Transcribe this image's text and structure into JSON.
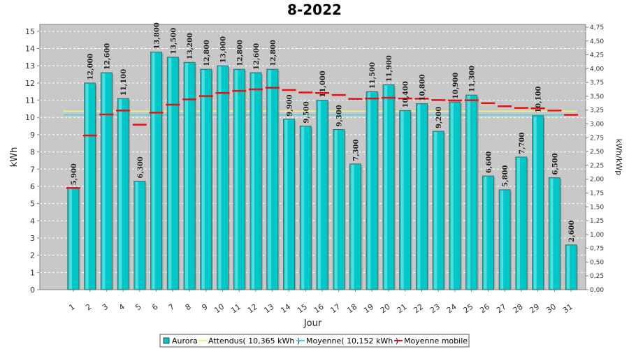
{
  "chart_data": {
    "type": "bar",
    "title": "8-2022",
    "xlabel": "Jour",
    "ylabel": "kWh",
    "y2label": "kWh/kWp",
    "ylim": [
      0,
      15.4
    ],
    "y2lim": [
      0,
      4.8
    ],
    "yticks": [
      "0",
      "1",
      "2",
      "3",
      "4",
      "5",
      "6",
      "7",
      "8",
      "9",
      "10",
      "11",
      "12",
      "13",
      "14",
      "15"
    ],
    "y2ticks": [
      "0,00",
      "0,25",
      "0,50",
      "0,75",
      "1,00",
      "1,25",
      "1,50",
      "1,75",
      "2,00",
      "2,25",
      "2,50",
      "2,75",
      "3,00",
      "3,25",
      "3,50",
      "3,75",
      "4,00",
      "4,25",
      "4,50",
      "4,75"
    ],
    "categories": [
      "1",
      "2",
      "3",
      "4",
      "5",
      "6",
      "7",
      "8",
      "9",
      "10",
      "11",
      "12",
      "13",
      "14",
      "15",
      "16",
      "17",
      "18",
      "19",
      "20",
      "21",
      "22",
      "23",
      "24",
      "25",
      "26",
      "27",
      "28",
      "29",
      "30",
      "31"
    ],
    "grid": true,
    "legend_position": "bottom",
    "series": [
      {
        "name": "Aurora",
        "kind": "bar",
        "color": "#00c8c8",
        "values": [
          5.9,
          12.0,
          12.6,
          11.1,
          6.3,
          13.8,
          13.5,
          13.2,
          12.8,
          13.0,
          12.8,
          12.6,
          12.8,
          9.9,
          9.5,
          11.0,
          9.3,
          7.3,
          11.5,
          11.9,
          10.4,
          10.8,
          9.2,
          10.9,
          11.3,
          6.6,
          5.8,
          7.7,
          10.1,
          6.5,
          2.6
        ],
        "labels": [
          "5,900",
          "12,000",
          "12,600",
          "11,100",
          "6,300",
          "13,800",
          "13,500",
          "13,200",
          "12,800",
          "13,000",
          "12,800",
          "12,600",
          "12,800",
          "9,900",
          "9,500",
          "11,000",
          "9,300",
          "7,300",
          "11,500",
          "11,900",
          "10,400",
          "10,800",
          "9,200",
          "10,900",
          "11,300",
          "6,600",
          "5,800",
          "7,700",
          "10,100",
          "6,500",
          "2,600"
        ]
      },
      {
        "name": "Attendus( 10,365 kWh )",
        "kind": "line",
        "color": "#f5f07a",
        "value": 10.365
      },
      {
        "name": "Moyenne( 10,152 kWh )",
        "kind": "line",
        "color": "#40d0e0",
        "value": 10.152
      },
      {
        "name": "Moyenne mobile",
        "kind": "marker",
        "color": "#e81010",
        "values": [
          5.9,
          8.95,
          10.17,
          10.4,
          9.58,
          10.28,
          10.74,
          11.05,
          11.24,
          11.42,
          11.54,
          11.63,
          11.72,
          11.59,
          11.45,
          11.42,
          11.3,
          11.08,
          11.1,
          11.14,
          11.1,
          11.09,
          11.01,
          10.99,
          11.0,
          10.83,
          10.65,
          10.55,
          10.53,
          10.4,
          10.15
        ]
      }
    ]
  }
}
